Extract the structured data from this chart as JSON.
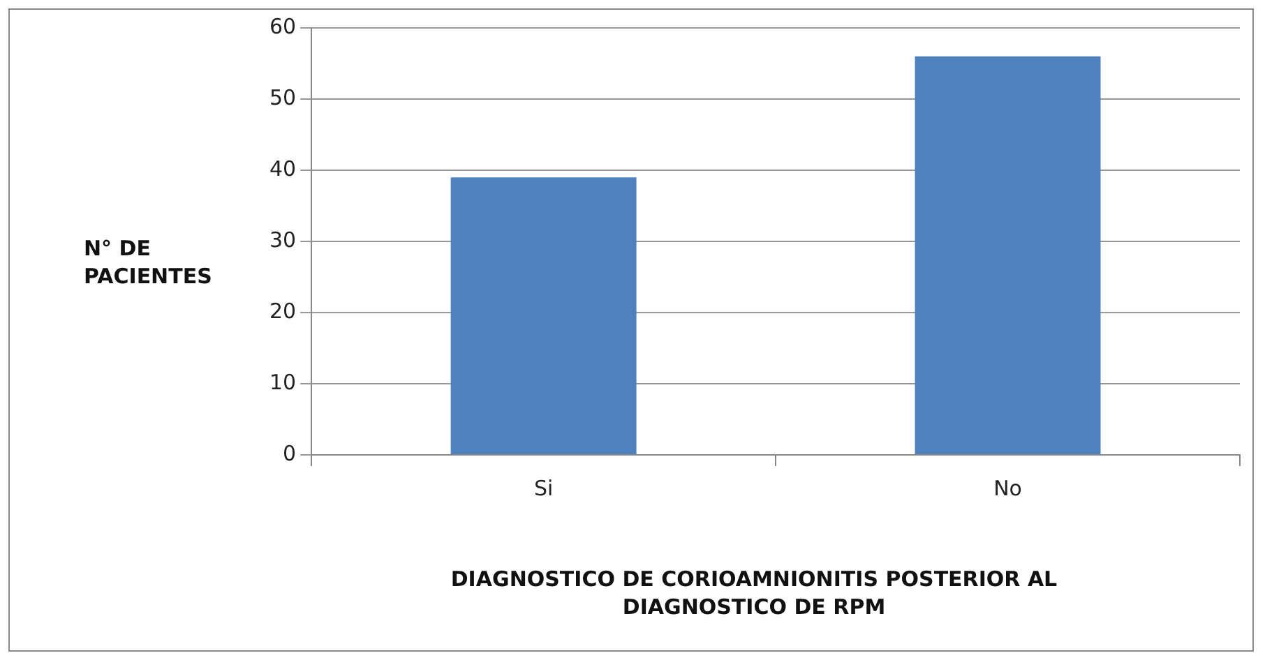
{
  "chart_data": {
    "type": "bar",
    "categories": [
      "Si",
      "No"
    ],
    "values": [
      39,
      56
    ],
    "color": "#4f81bd",
    "xlabel": "DIAGNOSTICO DE CORIOAMNIONITIS POSTERIOR AL DIAGNOSTICO DE RPM",
    "ylabel": "N° DE PACIENTES",
    "ylim": [
      0,
      60
    ],
    "yticks": [
      0,
      10,
      20,
      30,
      40,
      50,
      60
    ],
    "grid": "y",
    "legend": false
  }
}
